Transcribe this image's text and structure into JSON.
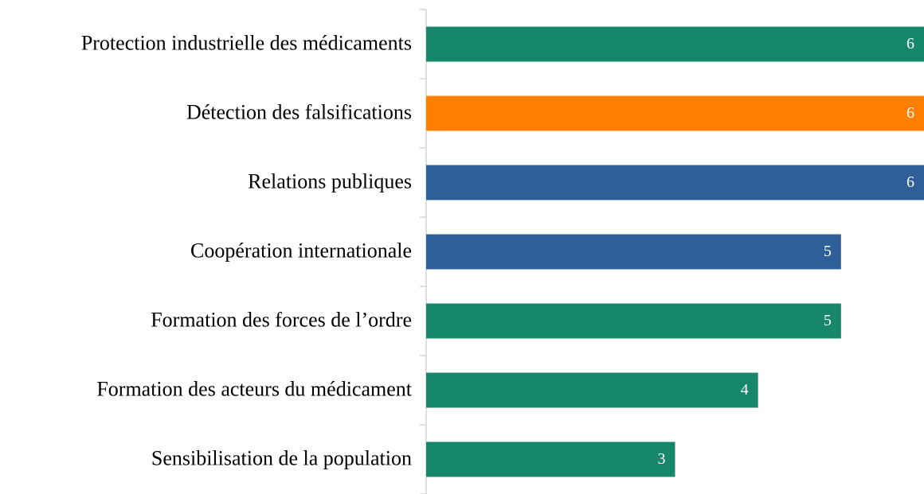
{
  "chart_data": {
    "type": "bar",
    "orientation": "horizontal",
    "categories": [
      "Protection industrielle des médicaments",
      "Détection des falsifications",
      "Relations publiques",
      "Coopération internationale",
      "Formation des forces de l’ordre",
      "Formation des acteurs du médicament",
      "Sensibilisation de la population"
    ],
    "values": [
      6,
      6,
      6,
      5,
      5,
      4,
      3
    ],
    "colors": [
      "#17876b",
      "#ff8000",
      "#2e5f99",
      "#2e5f99",
      "#17876b",
      "#17876b",
      "#17876b"
    ],
    "xlim": [
      0,
      6
    ]
  }
}
